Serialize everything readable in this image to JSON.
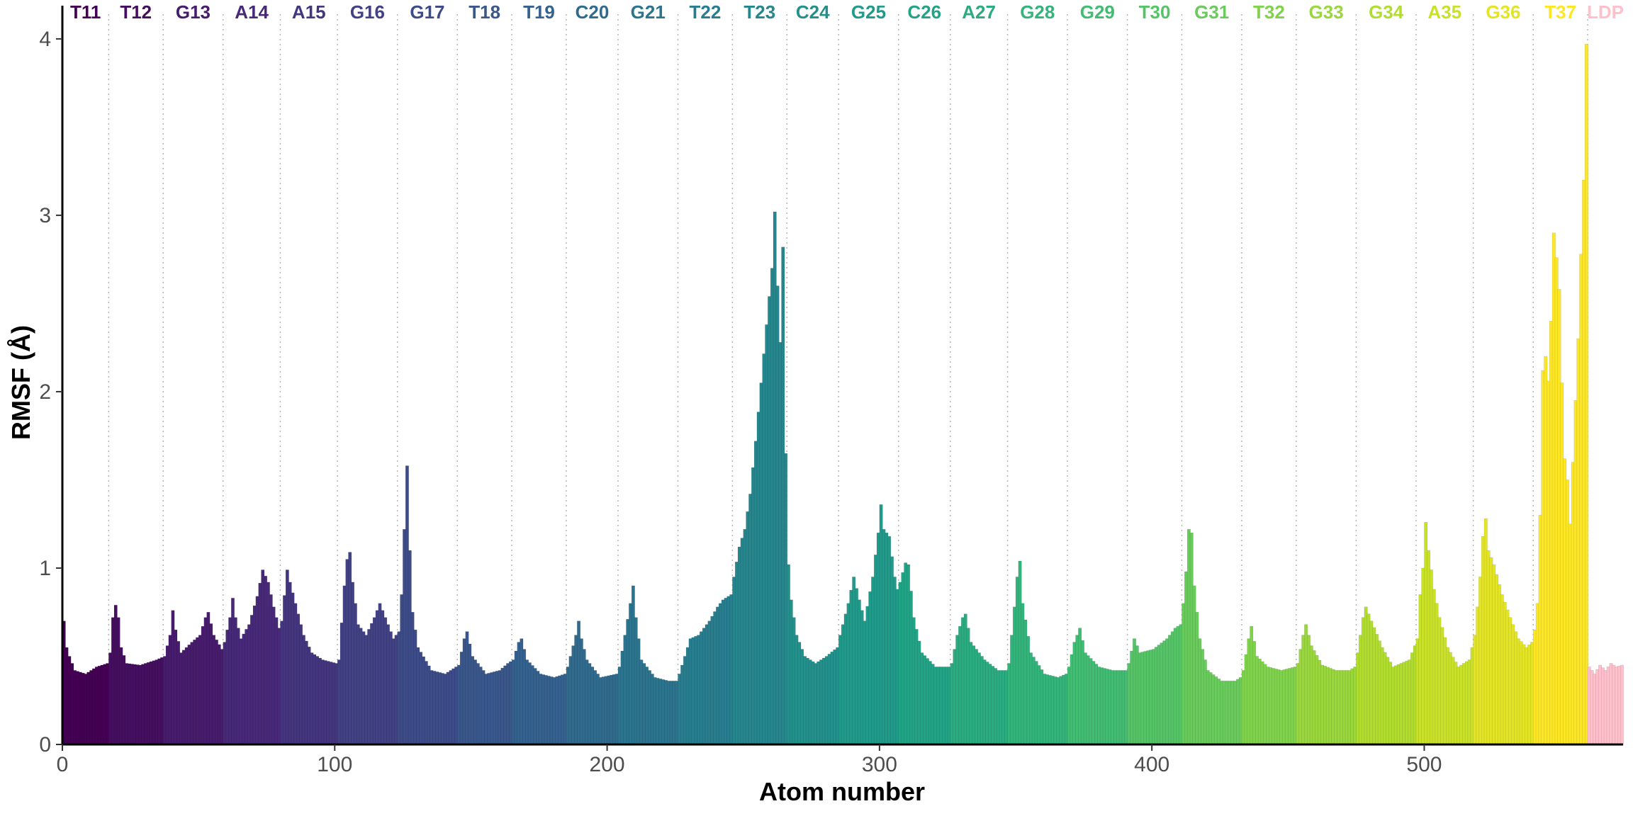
{
  "chart_data": {
    "type": "bar",
    "title": "",
    "xlabel": "Atom number",
    "ylabel": "RMSF (Å)",
    "xlim": [
      0,
      573
    ],
    "ylim": [
      0,
      4.1
    ],
    "x_ticks": [
      "0",
      "100",
      "200",
      "300",
      "400",
      "500"
    ],
    "y_ticks": [
      "0",
      "1",
      "2",
      "3",
      "4"
    ],
    "grid": "vertical dotted lines at residue boundaries",
    "legend": "none",
    "residues": [
      {
        "name": "T11",
        "start": 0,
        "end": 17,
        "color": "#440154"
      },
      {
        "name": "T12",
        "start": 17,
        "end": 37,
        "color": "#46075A"
      },
      {
        "name": "G13",
        "start": 37,
        "end": 59,
        "color": "#471365"
      },
      {
        "name": "A14",
        "start": 59,
        "end": 80,
        "color": "#481C6E"
      },
      {
        "name": "A15",
        "start": 80,
        "end": 101,
        "color": "#472676"
      },
      {
        "name": "G16",
        "start": 101,
        "end": 123,
        "color": "#46307E"
      },
      {
        "name": "G17",
        "start": 123,
        "end": 145,
        "color": "#443A83"
      },
      {
        "name": "T18",
        "start": 145,
        "end": 165,
        "color": "#414487"
      },
      {
        "name": "T19",
        "start": 165,
        "end": 185,
        "color": "#3E4C8A"
      },
      {
        "name": "C20",
        "start": 185,
        "end": 204,
        "color": "#3A548C"
      },
      {
        "name": "G21",
        "start": 204,
        "end": 226,
        "color": "#365C8D"
      },
      {
        "name": "T22",
        "start": 226,
        "end": 246,
        "color": "#32648E"
      },
      {
        "name": "T23",
        "start": 246,
        "end": 266,
        "color": "#2F6C8E"
      },
      {
        "name": "C24",
        "start": 266,
        "end": 285,
        "color": "#2B748E"
      },
      {
        "name": "G25",
        "start": 285,
        "end": 307,
        "color": "#287C8E"
      },
      {
        "name": "C26",
        "start": 307,
        "end": 326,
        "color": "#25848E"
      },
      {
        "name": "A27",
        "start": 326,
        "end": 347,
        "color": "#228C8D"
      },
      {
        "name": "G28",
        "start": 347,
        "end": 369,
        "color": "#1F948C"
      },
      {
        "name": "G29",
        "start": 369,
        "end": 391,
        "color": "#1E9C89"
      },
      {
        "name": "T30",
        "start": 391,
        "end": 411,
        "color": "#20A486"
      },
      {
        "name": "G31",
        "start": 411,
        "end": 433,
        "color": "#25AC82"
      },
      {
        "name": "T32",
        "start": 433,
        "end": 453,
        "color": "#2EB37C"
      },
      {
        "name": "G33",
        "start": 453,
        "end": 475,
        "color": "#3ABA76"
      },
      {
        "name": "G34",
        "start": 475,
        "end": 497,
        "color": "#48C16E"
      },
      {
        "name": "A35",
        "start": 497,
        "end": 518,
        "color": "#58C765"
      },
      {
        "name": "G36",
        "start": 518,
        "end": 540,
        "color": "#6ACD5B"
      },
      {
        "name": "T37",
        "start": 540,
        "end": 560,
        "color": "#7ED34F"
      },
      {
        "name": "LDP",
        "start": 560,
        "end": 573,
        "color": "#FFC0CB"
      }
    ],
    "label_colors": [
      "#440154",
      "#46075A",
      "#471365",
      "#481C6E",
      "#472676",
      "#46307E",
      "#443A83",
      "#414487",
      "#3E4C8A",
      "#3A548C",
      "#365C8D",
      "#32648E",
      "#2F6C8E",
      "#2B748E",
      "#287C8E",
      "#25848E",
      "#228C8D",
      "#1F948C",
      "#1E9C89",
      "#20A486",
      "#25AC82",
      "#2EB37C",
      "#3ABA76",
      "#48C16E",
      "#58C765",
      "#6ACD5B",
      "#7ED34F",
      "#FFC0CB"
    ],
    "bar_colors_note": "bar fill follows viridis gradient across residues; LDP bars pink",
    "keypoints": [
      [
        0,
        0.7
      ],
      [
        1,
        0.55
      ],
      [
        2,
        0.5
      ],
      [
        4,
        0.42
      ],
      [
        8,
        0.4
      ],
      [
        12,
        0.44
      ],
      [
        16,
        0.46
      ],
      [
        17,
        0.52
      ],
      [
        18,
        0.72
      ],
      [
        19,
        0.79
      ],
      [
        20,
        0.72
      ],
      [
        21,
        0.55
      ],
      [
        23,
        0.46
      ],
      [
        28,
        0.45
      ],
      [
        34,
        0.48
      ],
      [
        37,
        0.5
      ],
      [
        39,
        0.62
      ],
      [
        40,
        0.76
      ],
      [
        41,
        0.65
      ],
      [
        43,
        0.52
      ],
      [
        47,
        0.58
      ],
      [
        50,
        0.62
      ],
      [
        52,
        0.72
      ],
      [
        53,
        0.75
      ],
      [
        55,
        0.62
      ],
      [
        58,
        0.54
      ],
      [
        59,
        0.58
      ],
      [
        61,
        0.72
      ],
      [
        62,
        0.83
      ],
      [
        63,
        0.72
      ],
      [
        65,
        0.6
      ],
      [
        68,
        0.68
      ],
      [
        71,
        0.84
      ],
      [
        73,
        0.99
      ],
      [
        75,
        0.92
      ],
      [
        77,
        0.78
      ],
      [
        79,
        0.66
      ],
      [
        80,
        0.7
      ],
      [
        82,
        0.99
      ],
      [
        83,
        0.92
      ],
      [
        85,
        0.8
      ],
      [
        88,
        0.62
      ],
      [
        91,
        0.52
      ],
      [
        95,
        0.48
      ],
      [
        100,
        0.46
      ],
      [
        101,
        0.48
      ],
      [
        103,
        0.9
      ],
      [
        104,
        1.05
      ],
      [
        105,
        1.09
      ],
      [
        106,
        0.92
      ],
      [
        108,
        0.68
      ],
      [
        111,
        0.62
      ],
      [
        114,
        0.72
      ],
      [
        116,
        0.8
      ],
      [
        118,
        0.72
      ],
      [
        121,
        0.6
      ],
      [
        123,
        0.64
      ],
      [
        124,
        0.85
      ],
      [
        125,
        1.22
      ],
      [
        126,
        1.58
      ],
      [
        127,
        1.1
      ],
      [
        128,
        0.75
      ],
      [
        130,
        0.55
      ],
      [
        135,
        0.42
      ],
      [
        140,
        0.4
      ],
      [
        144,
        0.44
      ],
      [
        145,
        0.45
      ],
      [
        147,
        0.6
      ],
      [
        148,
        0.64
      ],
      [
        150,
        0.5
      ],
      [
        155,
        0.4
      ],
      [
        160,
        0.42
      ],
      [
        163,
        0.46
      ],
      [
        165,
        0.48
      ],
      [
        167,
        0.58
      ],
      [
        168,
        0.6
      ],
      [
        170,
        0.48
      ],
      [
        175,
        0.4
      ],
      [
        180,
        0.38
      ],
      [
        184,
        0.4
      ],
      [
        185,
        0.44
      ],
      [
        188,
        0.62
      ],
      [
        189,
        0.7
      ],
      [
        190,
        0.6
      ],
      [
        192,
        0.48
      ],
      [
        197,
        0.38
      ],
      [
        203,
        0.4
      ],
      [
        204,
        0.44
      ],
      [
        206,
        0.62
      ],
      [
        208,
        0.8
      ],
      [
        209,
        0.9
      ],
      [
        210,
        0.72
      ],
      [
        212,
        0.48
      ],
      [
        217,
        0.38
      ],
      [
        222,
        0.36
      ],
      [
        225,
        0.36
      ],
      [
        226,
        0.4
      ],
      [
        228,
        0.5
      ],
      [
        230,
        0.6
      ],
      [
        233,
        0.62
      ],
      [
        237,
        0.7
      ],
      [
        240,
        0.78
      ],
      [
        242,
        0.82
      ],
      [
        245,
        0.85
      ],
      [
        246,
        0.95
      ],
      [
        248,
        1.12
      ],
      [
        250,
        1.22
      ],
      [
        252,
        1.42
      ],
      [
        254,
        1.72
      ],
      [
        256,
        2.05
      ],
      [
        258,
        2.38
      ],
      [
        260,
        2.7
      ],
      [
        261,
        3.02
      ],
      [
        262,
        2.6
      ],
      [
        263,
        2.28
      ],
      [
        264,
        2.82
      ],
      [
        265,
        1.65
      ],
      [
        266,
        1.02
      ],
      [
        267,
        0.82
      ],
      [
        269,
        0.62
      ],
      [
        272,
        0.5
      ],
      [
        276,
        0.46
      ],
      [
        280,
        0.5
      ],
      [
        284,
        0.55
      ],
      [
        285,
        0.62
      ],
      [
        288,
        0.8
      ],
      [
        290,
        0.95
      ],
      [
        292,
        0.82
      ],
      [
        294,
        0.7
      ],
      [
        297,
        0.95
      ],
      [
        299,
        1.2
      ],
      [
        300,
        1.36
      ],
      [
        301,
        1.22
      ],
      [
        303,
        1.18
      ],
      [
        305,
        0.95
      ],
      [
        306,
        0.88
      ],
      [
        307,
        0.92
      ],
      [
        309,
        1.03
      ],
      [
        310,
        1.02
      ],
      [
        312,
        0.72
      ],
      [
        315,
        0.52
      ],
      [
        320,
        0.44
      ],
      [
        325,
        0.44
      ],
      [
        326,
        0.46
      ],
      [
        328,
        0.62
      ],
      [
        330,
        0.72
      ],
      [
        331,
        0.74
      ],
      [
        333,
        0.58
      ],
      [
        338,
        0.48
      ],
      [
        343,
        0.42
      ],
      [
        346,
        0.42
      ],
      [
        347,
        0.46
      ],
      [
        349,
        0.78
      ],
      [
        350,
        0.95
      ],
      [
        351,
        1.04
      ],
      [
        352,
        0.8
      ],
      [
        355,
        0.52
      ],
      [
        360,
        0.4
      ],
      [
        365,
        0.38
      ],
      [
        368,
        0.4
      ],
      [
        369,
        0.44
      ],
      [
        371,
        0.58
      ],
      [
        373,
        0.66
      ],
      [
        375,
        0.52
      ],
      [
        380,
        0.44
      ],
      [
        385,
        0.42
      ],
      [
        390,
        0.42
      ],
      [
        391,
        0.46
      ],
      [
        393,
        0.6
      ],
      [
        395,
        0.52
      ],
      [
        400,
        0.54
      ],
      [
        405,
        0.6
      ],
      [
        408,
        0.66
      ],
      [
        410,
        0.68
      ],
      [
        411,
        0.8
      ],
      [
        412,
        0.98
      ],
      [
        413,
        1.22
      ],
      [
        414,
        1.2
      ],
      [
        415,
        0.9
      ],
      [
        417,
        0.6
      ],
      [
        420,
        0.42
      ],
      [
        425,
        0.36
      ],
      [
        430,
        0.36
      ],
      [
        432,
        0.38
      ],
      [
        433,
        0.42
      ],
      [
        435,
        0.6
      ],
      [
        436,
        0.67
      ],
      [
        438,
        0.5
      ],
      [
        442,
        0.44
      ],
      [
        447,
        0.42
      ],
      [
        452,
        0.44
      ],
      [
        453,
        0.46
      ],
      [
        455,
        0.62
      ],
      [
        456,
        0.68
      ],
      [
        458,
        0.56
      ],
      [
        462,
        0.45
      ],
      [
        467,
        0.42
      ],
      [
        472,
        0.42
      ],
      [
        474,
        0.44
      ],
      [
        475,
        0.52
      ],
      [
        477,
        0.72
      ],
      [
        478,
        0.78
      ],
      [
        480,
        0.7
      ],
      [
        484,
        0.55
      ],
      [
        488,
        0.44
      ],
      [
        494,
        0.48
      ],
      [
        497,
        0.6
      ],
      [
        498,
        0.85
      ],
      [
        499,
        1.0
      ],
      [
        500,
        1.26
      ],
      [
        501,
        1.1
      ],
      [
        503,
        0.88
      ],
      [
        505,
        0.72
      ],
      [
        508,
        0.55
      ],
      [
        512,
        0.44
      ],
      [
        516,
        0.48
      ],
      [
        518,
        0.62
      ],
      [
        519,
        0.78
      ],
      [
        520,
        0.95
      ],
      [
        521,
        1.18
      ],
      [
        522,
        1.28
      ],
      [
        523,
        1.1
      ],
      [
        525,
        1.02
      ],
      [
        528,
        0.85
      ],
      [
        531,
        0.72
      ],
      [
        534,
        0.6
      ],
      [
        537,
        0.55
      ],
      [
        539,
        0.58
      ],
      [
        540,
        0.65
      ],
      [
        541,
        0.8
      ],
      [
        542,
        1.3
      ],
      [
        543,
        2.12
      ],
      [
        544,
        2.2
      ],
      [
        545,
        2.06
      ],
      [
        546,
        2.4
      ],
      [
        547,
        2.9
      ],
      [
        548,
        2.76
      ],
      [
        549,
        2.58
      ],
      [
        550,
        2.05
      ],
      [
        551,
        1.62
      ],
      [
        552,
        1.5
      ],
      [
        553,
        1.25
      ],
      [
        554,
        1.6
      ],
      [
        555,
        1.95
      ],
      [
        556,
        2.3
      ],
      [
        557,
        2.78
      ],
      [
        558,
        3.2
      ],
      [
        559,
        3.97
      ],
      [
        560,
        0.44
      ],
      [
        562,
        0.4
      ],
      [
        564,
        0.45
      ],
      [
        566,
        0.42
      ],
      [
        568,
        0.46
      ],
      [
        570,
        0.44
      ],
      [
        572,
        0.45
      ]
    ]
  }
}
